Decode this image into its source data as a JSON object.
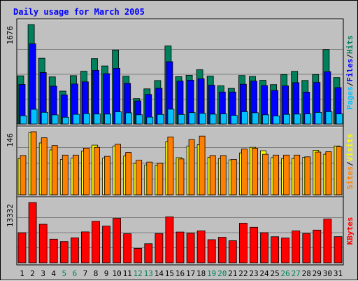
{
  "chart_data": {
    "type": "bar",
    "title": "Daily usage for March 2005",
    "categories": [
      "1",
      "2",
      "3",
      "4",
      "5",
      "6",
      "7",
      "8",
      "9",
      "10",
      "11",
      "12",
      "13",
      "14",
      "15",
      "16",
      "17",
      "18",
      "19",
      "20",
      "21",
      "22",
      "23",
      "24",
      "25",
      "26",
      "27",
      "28",
      "29",
      "30",
      "31"
    ],
    "weekend_categories": [
      "5",
      "6",
      "12",
      "13",
      "19",
      "20",
      "26",
      "27"
    ],
    "colors": {
      "title": "#0000ff",
      "hits": "#00805c",
      "files": "#0000ff",
      "pages": "#00c0ff",
      "visits": "#ffff00",
      "sites": "#ff8000",
      "kbytes": "#ff0000",
      "weekday_label": "#000000",
      "weekend_label": "#00805c",
      "panel": "#c0c0c0",
      "grid": "#808080"
    },
    "panels": [
      {
        "id": "hits-files-pages",
        "ymax_label": "1676",
        "ymax": 1676,
        "axis_labels": [
          {
            "text": "Hits",
            "color": "#00805c"
          },
          {
            "text": "/",
            "color": "#000000"
          },
          {
            "text": "Files",
            "color": "#0000ff"
          },
          {
            "text": "/",
            "color": "#000000"
          },
          {
            "text": "Pages",
            "color": "#00c0ff"
          }
        ],
        "series": [
          {
            "name": "Hits",
            "color": "#00805c",
            "values": [
              812,
              1676,
              1108,
              794,
              555,
              816,
              890,
              1101,
              979,
              1246,
              806,
              429,
              593,
              733,
              1316,
              798,
              821,
              915,
              809,
              644,
              601,
              818,
              801,
              736,
              665,
              835,
              887,
              734,
              834,
              1255,
              782
            ]
          },
          {
            "name": "Files",
            "color": "#0000ff",
            "values": [
              667,
              1352,
              867,
              637,
              491,
              674,
              710,
              904,
              849,
              940,
              684,
              390,
              498,
              602,
              1051,
              723,
              739,
              762,
              654,
              539,
              539,
              670,
              724,
              648,
              564,
              643,
              697,
              538,
              701,
              882,
              614
            ]
          },
          {
            "name": "Pages",
            "color": "#00c0ff",
            "values": [
              139,
              248,
              197,
              155,
              115,
              164,
              175,
              169,
              168,
              206,
              189,
              156,
              117,
              162,
              250,
              162,
              192,
              181,
              166,
              171,
              145,
              208,
              190,
              156,
              137,
              163,
              168,
              171,
              196,
              209,
              170
            ]
          }
        ]
      },
      {
        "id": "visits-sites",
        "ymax_label": "146",
        "ymax": 146,
        "axis_labels": [
          {
            "text": "Visits",
            "color": "#ffff00"
          },
          {
            "text": "/",
            "color": "#000000"
          },
          {
            "text": "Sites",
            "color": "#ff8000"
          }
        ],
        "series": [
          {
            "name": "Visits",
            "color": "#ffff00",
            "values": [
              84,
              144,
              120,
              104,
              82,
              85,
              101,
              115,
              85,
              113,
              90,
              73,
              69,
              68,
              123,
              86,
              113,
              116,
              87,
              84,
              81,
              97,
              110,
              102,
              86,
              84,
              84,
              87,
              103,
              94,
              113
            ]
          },
          {
            "name": "Sites",
            "color": "#ff8000",
            "values": [
              91,
              146,
              132,
              114,
              92,
              92,
              108,
              110,
              89,
              117,
              98,
              80,
              76,
              73,
              134,
              83,
              128,
              136,
              91,
              91,
              82,
              106,
              108,
              94,
              92,
              92,
              92,
              88,
              99,
              100,
              111
            ]
          }
        ]
      },
      {
        "id": "kbytes",
        "ymax_label": "13332",
        "ymax": 13332,
        "axis_labels": [
          {
            "text": "KBytes",
            "color": "#ff0000"
          }
        ],
        "series": [
          {
            "name": "KBytes",
            "color": "#ff0000",
            "values": [
              6650,
              13332,
              8530,
              5230,
              4690,
              5520,
              6830,
              9170,
              8120,
              9830,
              6430,
              3190,
              4210,
              6460,
              10160,
              6810,
              6550,
              7060,
              5110,
              5640,
              4890,
              8760,
              7860,
              6670,
              5760,
              5480,
              7060,
              6480,
              7240,
              9680,
              5780
            ]
          }
        ]
      }
    ]
  }
}
